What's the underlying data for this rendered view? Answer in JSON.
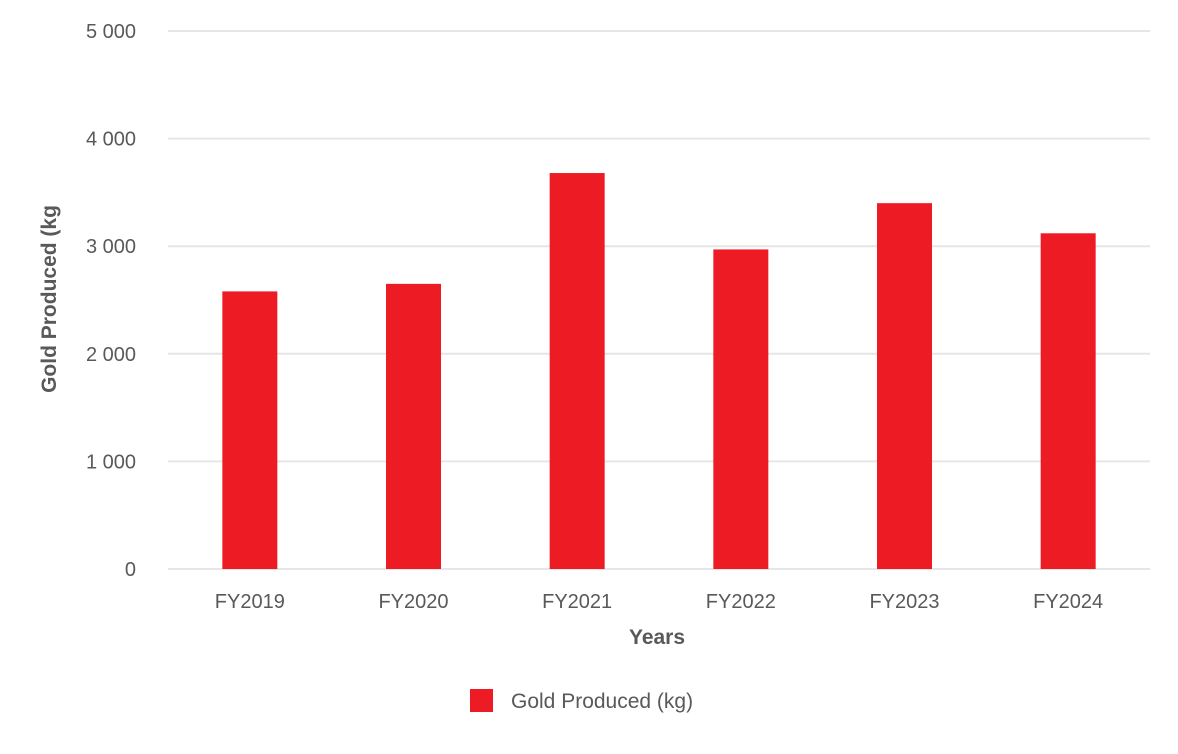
{
  "chart_data": {
    "type": "bar",
    "categories": [
      "FY2019",
      "FY2020",
      "FY2021",
      "FY2022",
      "FY2023",
      "FY2024"
    ],
    "series": [
      {
        "name": "Gold Produced (kg)",
        "values": [
          2580,
          2650,
          3680,
          2970,
          3400,
          3120
        ]
      }
    ],
    "xlabel": "Years",
    "ylabel": "Gold Produced (kg",
    "ylim": [
      0,
      5000
    ],
    "yticks": [
      0,
      1000,
      2000,
      3000,
      4000,
      5000
    ],
    "ytick_labels": [
      "0",
      "1 000",
      "2 000",
      "3 000",
      "4 000",
      "5 000"
    ],
    "grid": true,
    "legend_position": "bottom",
    "colors": {
      "bar": "#ed1c24",
      "grid": "#e6e6e6",
      "text": "#595959"
    }
  }
}
